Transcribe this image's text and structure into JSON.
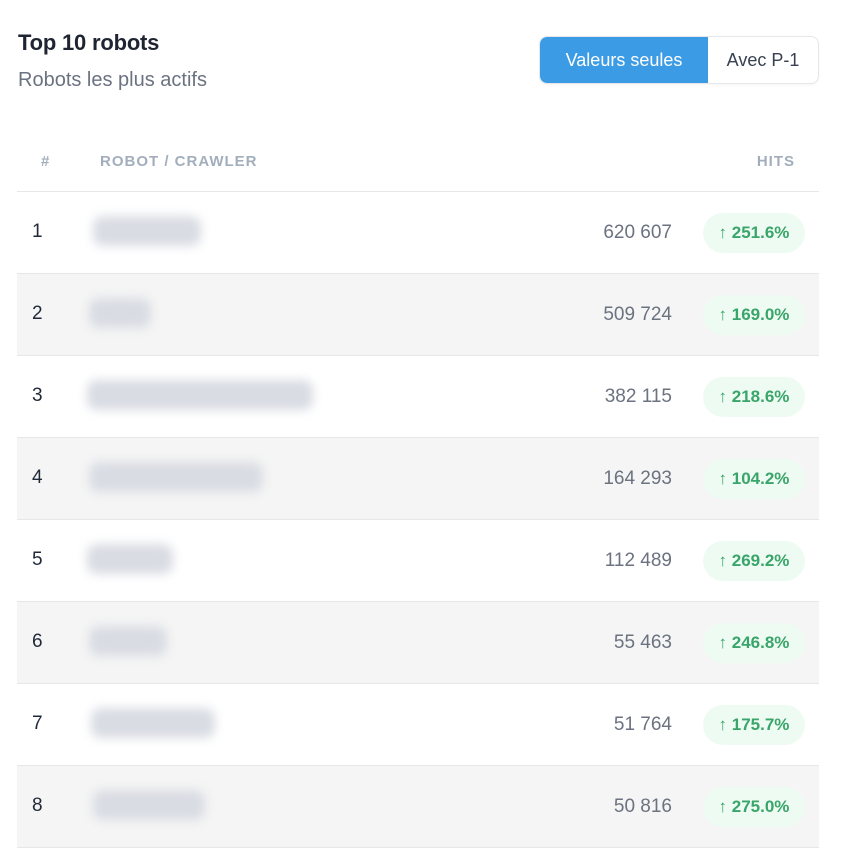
{
  "header": {
    "title": "Top 10 robots",
    "subtitle": "Robots les plus actifs"
  },
  "toggle": {
    "values_only_label": "Valeurs seules",
    "with_p1_label": "Avec P-1"
  },
  "table": {
    "columns": {
      "rank": "#",
      "robot": "ROBOT / CRAWLER",
      "hits": "HITS"
    },
    "rows": [
      {
        "rank": "1",
        "hits": "620 607",
        "change": "↑ 251.6%"
      },
      {
        "rank": "2",
        "hits": "509 724",
        "change": "↑ 169.0%"
      },
      {
        "rank": "3",
        "hits": "382 115",
        "change": "↑ 218.6%"
      },
      {
        "rank": "4",
        "hits": "164 293",
        "change": "↑ 104.2%"
      },
      {
        "rank": "5",
        "hits": "112 489",
        "change": "↑ 269.2%"
      },
      {
        "rank": "6",
        "hits": "55 463",
        "change": "↑ 246.8%"
      },
      {
        "rank": "7",
        "hits": "51 764",
        "change": "↑ 175.7%"
      },
      {
        "rank": "8",
        "hits": "50 816",
        "change": "↑ 275.0%"
      }
    ]
  },
  "colors": {
    "accent": "#3b9be5",
    "positive_text": "#3aa56a",
    "positive_bg": "#eefbf2"
  }
}
